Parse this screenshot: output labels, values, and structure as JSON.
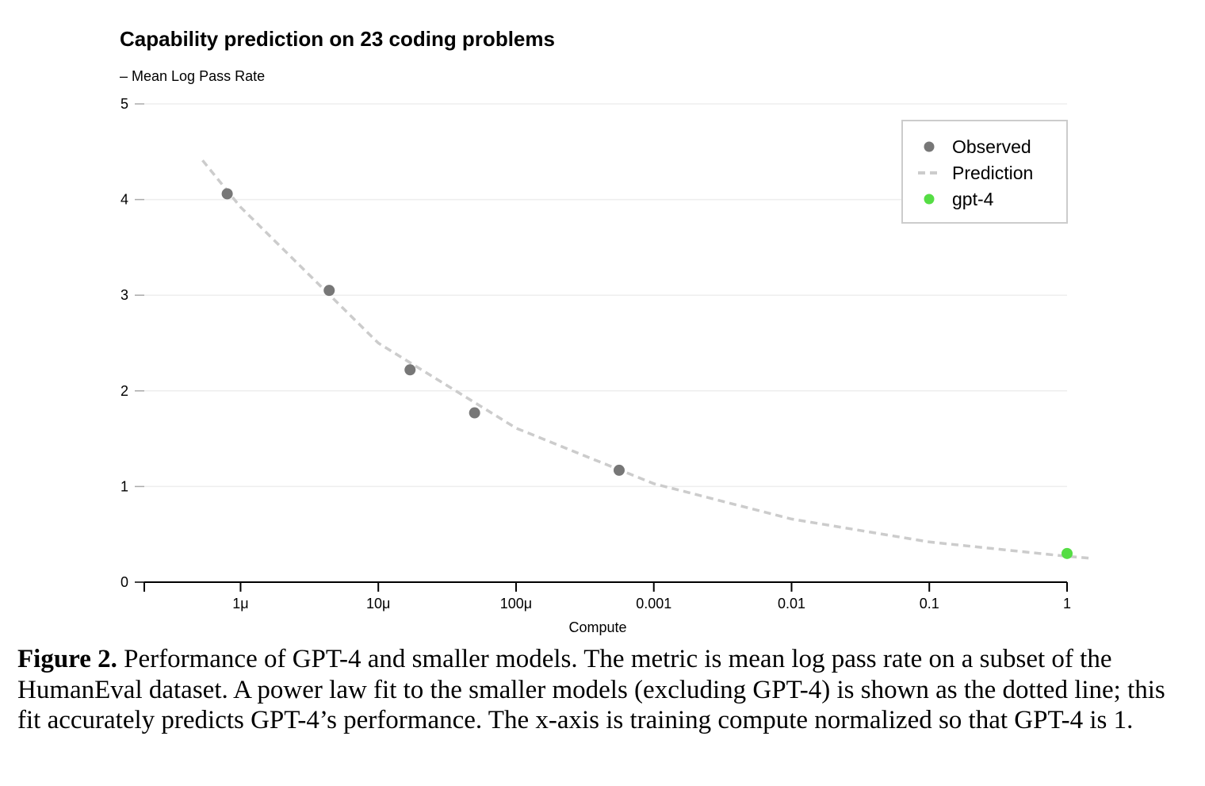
{
  "chart_data": {
    "type": "scatter",
    "title": "Capability prediction on 23 coding problems",
    "ylabel": "– Mean Log Pass Rate",
    "xlabel": "Compute",
    "x_scale": "log",
    "xlim": [
      2e-07,
      1
    ],
    "ylim": [
      0,
      5
    ],
    "y_ticks": [
      0,
      1,
      2,
      3,
      4,
      5
    ],
    "x_ticks": [
      {
        "value": 1e-06,
        "label": "1μ"
      },
      {
        "value": 1e-05,
        "label": "10μ"
      },
      {
        "value": 0.0001,
        "label": "100μ"
      },
      {
        "value": 0.001,
        "label": "0.001"
      },
      {
        "value": 0.01,
        "label": "0.01"
      },
      {
        "value": 0.1,
        "label": "0.1"
      },
      {
        "value": 1,
        "label": "1"
      }
    ],
    "grid": true,
    "legend_position": "top-right",
    "series": [
      {
        "name": "Observed",
        "kind": "scatter",
        "color": "#777777",
        "points": [
          {
            "x": 8e-07,
            "y": 4.06
          },
          {
            "x": 4.4e-06,
            "y": 3.05
          },
          {
            "x": 1.7e-05,
            "y": 2.22
          },
          {
            "x": 5e-05,
            "y": 1.77
          },
          {
            "x": 0.00056,
            "y": 1.17
          }
        ]
      },
      {
        "name": "Prediction",
        "kind": "dashed-line",
        "color": "#cccccc",
        "points": [
          {
            "x": 5.3e-07,
            "y": 4.41
          },
          {
            "x": 1e-06,
            "y": 3.92
          },
          {
            "x": 1e-05,
            "y": 2.5
          },
          {
            "x": 0.0001,
            "y": 1.61
          },
          {
            "x": 0.001,
            "y": 1.03
          },
          {
            "x": 0.01,
            "y": 0.66
          },
          {
            "x": 0.1,
            "y": 0.42
          },
          {
            "x": 1,
            "y": 0.27
          },
          {
            "x": 1.5,
            "y": 0.25
          }
        ]
      },
      {
        "name": "gpt-4",
        "kind": "scatter",
        "color": "#55dd44",
        "points": [
          {
            "x": 1,
            "y": 0.3
          }
        ]
      }
    ]
  },
  "caption": {
    "label": "Figure 2.",
    "text": " Performance of GPT-4 and smaller models. The metric is mean log pass rate on a subset of the HumanEval dataset. A power law fit to the smaller models (excluding GPT-4) is shown as the dotted line; this fit accurately predicts GPT-4’s performance. The x-axis is training compute normalized so that GPT-4 is 1."
  },
  "colors": {
    "gridline": "#eeeeee",
    "axis": "#000000",
    "legend_border": "#cccccc"
  }
}
